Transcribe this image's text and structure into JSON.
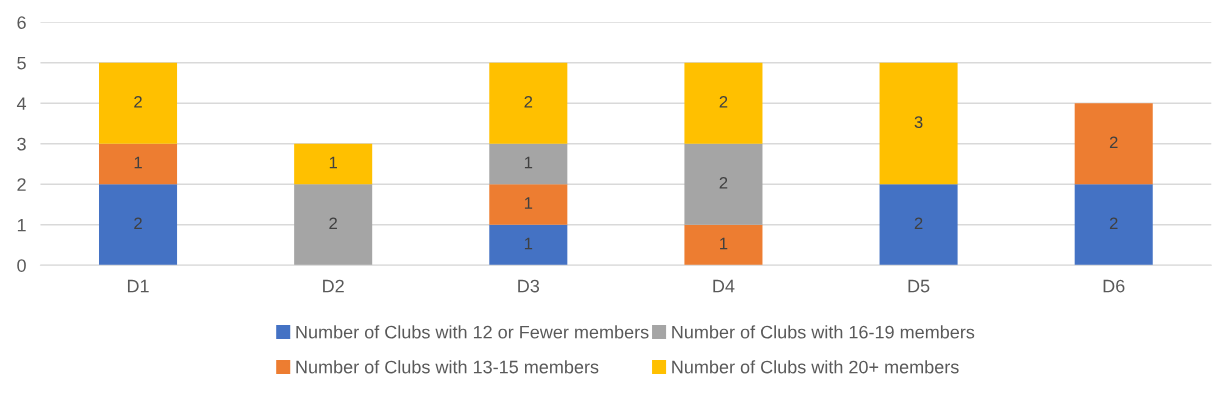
{
  "chart_data": {
    "type": "bar",
    "stacked": true,
    "categories": [
      "D1",
      "D2",
      "D3",
      "D4",
      "D5",
      "D6"
    ],
    "series": [
      {
        "name": "Number of Clubs with 12 or Fewer members",
        "color": "#4472c4",
        "values": [
          2,
          null,
          1,
          null,
          2,
          2
        ]
      },
      {
        "name": "Number of Clubs with 13-15 members",
        "color": "#ed7d31",
        "values": [
          1,
          null,
          1,
          1,
          null,
          2
        ]
      },
      {
        "name": "Number of Clubs with 16-19 members",
        "color": "#a5a5a5",
        "values": [
          null,
          2,
          1,
          2,
          null,
          null
        ]
      },
      {
        "name": "Number of Clubs with 20+ members",
        "color": "#ffc000",
        "values": [
          2,
          1,
          2,
          2,
          3,
          null
        ]
      }
    ],
    "ylim": [
      0,
      6
    ],
    "yticks": [
      0,
      1,
      2,
      3,
      4,
      5,
      6
    ],
    "grid": "y",
    "legend": "bottom",
    "data_labels": true
  }
}
